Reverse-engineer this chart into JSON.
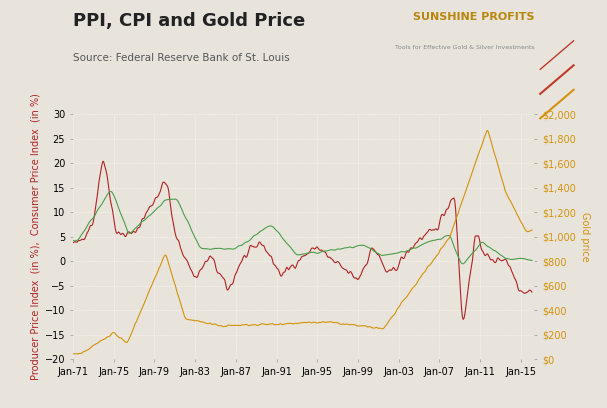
{
  "title": "PPI, CPI and Gold Price",
  "subtitle": "Source: Federal Reserve Bank of St. Louis",
  "left_ylabel": "Producer Price Index  (in %),  Consumer Price Index  (in %)",
  "right_ylabel": "Gold price",
  "left_ylim": [
    -20,
    30
  ],
  "right_ylim": [
    0,
    2000
  ],
  "left_yticks": [
    -20,
    -15,
    -10,
    -5,
    0,
    5,
    10,
    15,
    20,
    25,
    30
  ],
  "right_yticks": [
    0,
    200,
    400,
    600,
    800,
    1000,
    1200,
    1400,
    1600,
    1800,
    2000
  ],
  "right_yticklabels": [
    "$0",
    "$200",
    "$400",
    "$600",
    "$800",
    "$1,000",
    "$1,200",
    "$1,400",
    "$1,600",
    "$1,800",
    "$2,000"
  ],
  "ppi_color": "#b22222",
  "cpi_color": "#4a9e4a",
  "gold_color": "#d4920a",
  "background_color": "#e8e4dc",
  "plot_bg_color": "#e8e4dc",
  "grid_color": "#ffffff",
  "title_fontsize": 13,
  "subtitle_fontsize": 7.5,
  "axis_label_fontsize": 7,
  "tick_fontsize": 7,
  "sunshine_fontsize": 8,
  "x_tick_years": [
    1971,
    1975,
    1979,
    1983,
    1987,
    1991,
    1995,
    1999,
    2003,
    2007,
    2011,
    2015
  ],
  "xlim": [
    1971,
    2016.3
  ]
}
